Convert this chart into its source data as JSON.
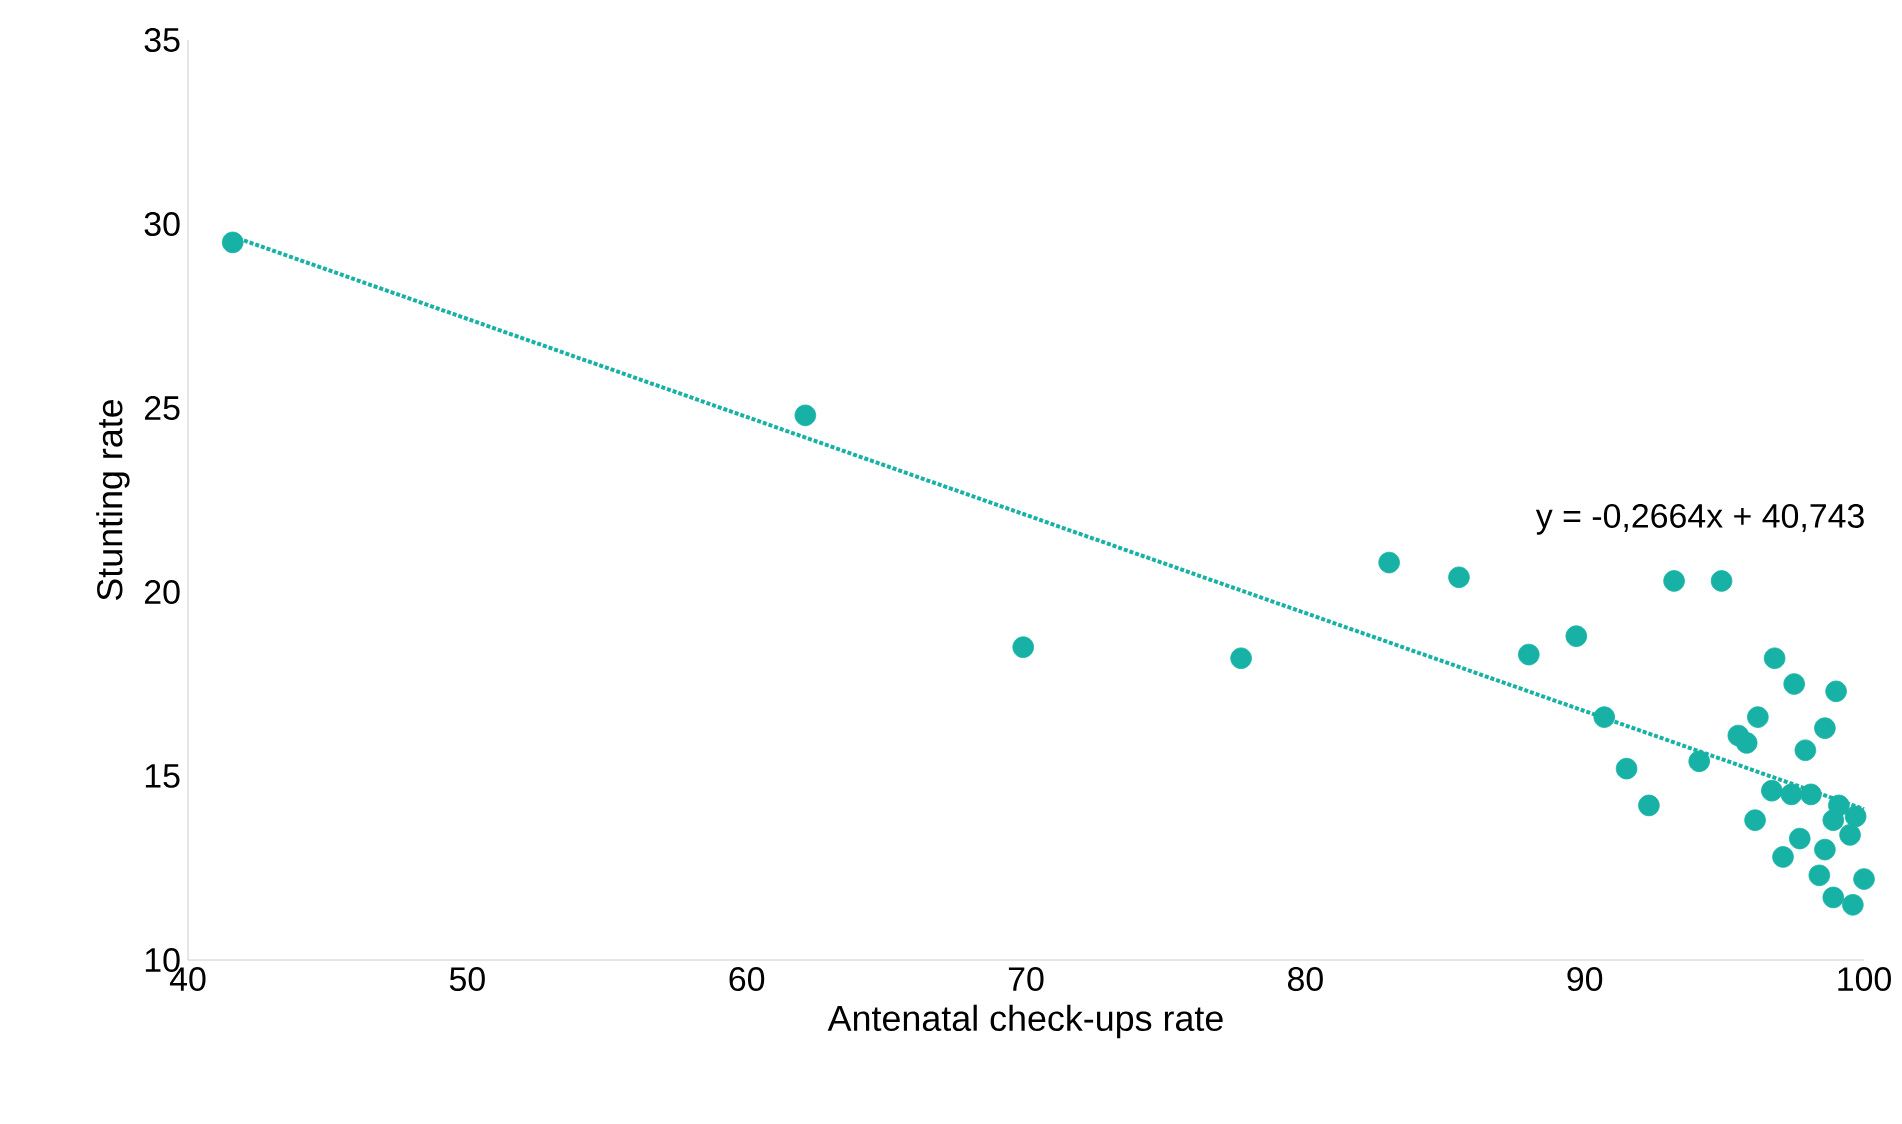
{
  "chart_data": {
    "type": "scatter",
    "xlabel": "Antenatal check-ups rate",
    "ylabel": "Stunting rate",
    "xlim": [
      40,
      100
    ],
    "ylim": [
      10,
      35
    ],
    "xticks": [
      40,
      50,
      60,
      70,
      80,
      90,
      100
    ],
    "yticks": [
      10,
      15,
      20,
      25,
      30,
      35
    ],
    "grid": false,
    "annotations": [
      "y = -0,2664x + 40,743"
    ],
    "series": [
      {
        "type": "scatter",
        "color": "#17b2a5",
        "marker": "circle",
        "x": [
          41.6,
          62.1,
          69.9,
          77.7,
          83.0,
          85.5,
          88.0,
          89.7,
          93.2,
          94.9,
          90.7,
          91.5,
          92.3,
          94.1,
          96.8,
          97.5,
          99.0,
          98.6,
          95.5,
          96.2,
          95.8,
          97.9,
          96.7,
          97.4,
          98.1,
          99.1,
          99.7,
          98.9,
          99.5,
          96.1,
          97.7,
          98.6,
          97.1,
          98.4,
          100.0,
          98.9,
          99.6
        ],
        "values": [
          29.5,
          24.8,
          18.5,
          18.2,
          20.8,
          20.4,
          18.3,
          18.8,
          20.3,
          20.3,
          16.6,
          15.2,
          14.2,
          15.4,
          18.2,
          17.5,
          17.3,
          16.3,
          16.1,
          16.6,
          15.9,
          15.7,
          14.6,
          14.5,
          14.5,
          14.2,
          13.9,
          13.8,
          13.4,
          13.8,
          13.3,
          13.0,
          12.8,
          12.3,
          12.2,
          11.7,
          11.5
        ]
      },
      {
        "type": "line",
        "color": "#17b2a5",
        "line_style": "dotted",
        "marker": "none",
        "x": [
          41.6,
          100
        ],
        "values": [
          29.66,
          14.1
        ]
      }
    ]
  }
}
